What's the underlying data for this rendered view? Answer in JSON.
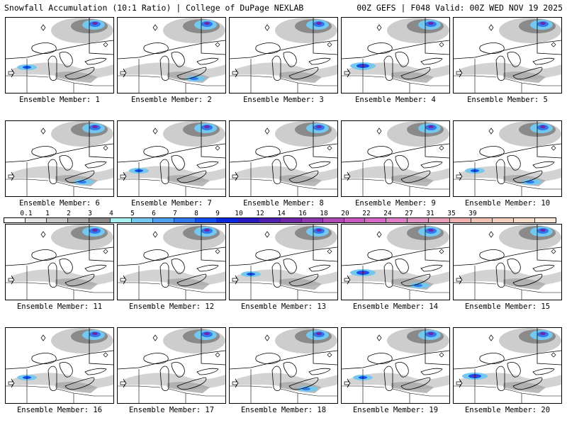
{
  "header": {
    "left": "Snowfall Accumulation (10:1 Ratio) | College of DuPage NEXLAB",
    "right": "00Z GEFS | F048 Valid: 00Z WED NOV 19 2025"
  },
  "members": [
    {
      "label": "Ensemble Member: 1"
    },
    {
      "label": "Ensemble Member: 2"
    },
    {
      "label": "Ensemble Member: 3"
    },
    {
      "label": "Ensemble Member: 4"
    },
    {
      "label": "Ensemble Member: 5"
    },
    {
      "label": "Ensemble Member: 6"
    },
    {
      "label": "Ensemble Member: 7"
    },
    {
      "label": "Ensemble Member: 8"
    },
    {
      "label": "Ensemble Member: 9"
    },
    {
      "label": "Ensemble Member: 10"
    },
    {
      "label": "Ensemble Member: 11"
    },
    {
      "label": "Ensemble Member: 12"
    },
    {
      "label": "Ensemble Member: 13"
    },
    {
      "label": "Ensemble Member: 14"
    },
    {
      "label": "Ensemble Member: 15"
    },
    {
      "label": "Ensemble Member: 16"
    },
    {
      "label": "Ensemble Member: 17"
    },
    {
      "label": "Ensemble Member: 18"
    },
    {
      "label": "Ensemble Member: 19"
    },
    {
      "label": "Ensemble Member: 20"
    }
  ],
  "colorbar": {
    "labels": [
      "0.1",
      "1",
      "2",
      "3",
      "4",
      "5",
      "6",
      "7",
      "8",
      "9",
      "10",
      "12",
      "14",
      "16",
      "18",
      "20",
      "22",
      "24",
      "27",
      "31",
      "35",
      "39"
    ],
    "colors": [
      "#ffffff",
      "#e3e3e3",
      "#c8c8c8",
      "#a8a8a8",
      "#8a8a8a",
      "#a8f0f0",
      "#74c8f0",
      "#4ea0f0",
      "#2e78f0",
      "#1050f0",
      "#0a28e0",
      "#2818c0",
      "#5020b0",
      "#7028a8",
      "#9038b0",
      "#b048b8",
      "#c858c0",
      "#d868c8",
      "#e07cc8",
      "#e090c0",
      "#e8a0b8",
      "#f0b0b0",
      "#f0c0b0",
      "#f4d0bc",
      "#f8dcc8",
      "#fbe8d8"
    ]
  }
}
